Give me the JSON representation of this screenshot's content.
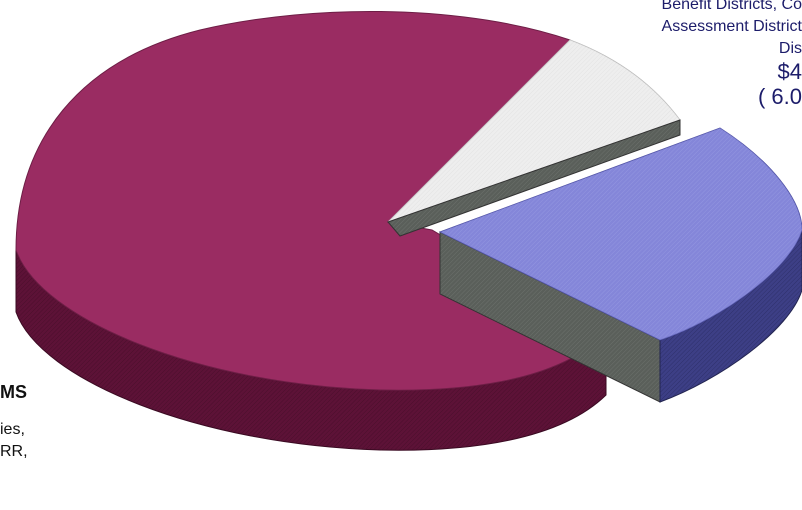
{
  "chart_data": {
    "type": "pie",
    "three_d": true,
    "exploded_slice": "Benefit Districts, Community Assessment Districts, Improvement Districts",
    "slices": [
      {
        "label": "Benefit Districts, Community Assessment Districts, Improvement Districts",
        "value": 6.0,
        "color": "#7b7ed1"
      },
      {
        "label": "",
        "value": 66.0,
        "color": "#9a2c62"
      },
      {
        "label": "",
        "value": 6.0,
        "color": "#ececec"
      }
    ],
    "annotations": [
      {
        "id": "right_label",
        "lines": [
          "Benefit Districts, Co",
          "Assessment District",
          "Dis",
          "$4",
          "( 6.0"
        ]
      },
      {
        "id": "left_label",
        "lines": [
          "MS",
          "ies,",
          "RR,"
        ]
      }
    ]
  }
}
